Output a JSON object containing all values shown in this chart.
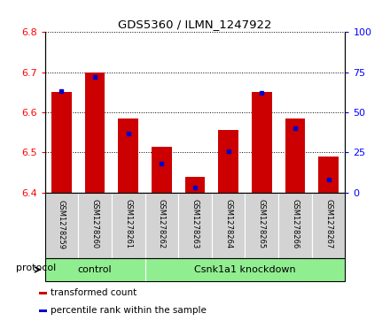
{
  "title": "GDS5360 / ILMN_1247922",
  "samples": [
    "GSM1278259",
    "GSM1278260",
    "GSM1278261",
    "GSM1278262",
    "GSM1278263",
    "GSM1278264",
    "GSM1278265",
    "GSM1278266",
    "GSM1278267"
  ],
  "transformed_counts": [
    6.65,
    6.7,
    6.585,
    6.515,
    6.44,
    6.555,
    6.65,
    6.585,
    6.49
  ],
  "percentile_ranks": [
    63,
    72,
    37,
    18,
    3,
    26,
    62,
    40,
    8
  ],
  "ylim_left": [
    6.4,
    6.8
  ],
  "ylim_right": [
    0,
    100
  ],
  "yticks_left": [
    6.4,
    6.5,
    6.6,
    6.7,
    6.8
  ],
  "yticks_right": [
    0,
    25,
    50,
    75,
    100
  ],
  "bar_color": "#cc0000",
  "dot_color": "#0000cc",
  "baseline": 6.4,
  "protocol_groups": [
    {
      "label": "control",
      "start": 0,
      "end": 3
    },
    {
      "label": "Csnk1a1 knockdown",
      "start": 3,
      "end": 9
    }
  ],
  "protocol_bg_color": "#90ee90",
  "sample_bg_color": "#d3d3d3",
  "legend_items": [
    {
      "label": "transformed count",
      "color": "#cc0000"
    },
    {
      "label": "percentile rank within the sample",
      "color": "#0000cc"
    }
  ],
  "protocol_label": "protocol",
  "grid_color": "#000000",
  "bar_width": 0.6
}
